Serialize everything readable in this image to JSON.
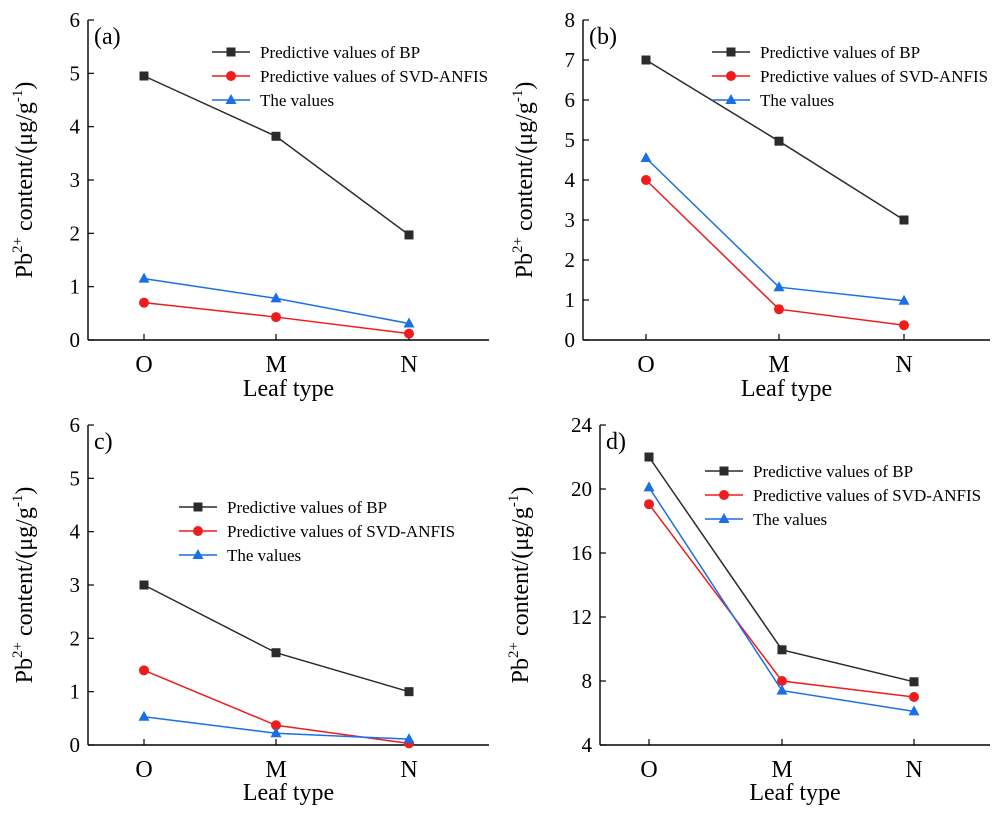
{
  "colors": {
    "bp": "#2b2b2b",
    "svd": "#ee1c1c",
    "actual": "#1a6fe6",
    "axis": "#000000"
  },
  "chart_data": [
    {
      "type": "line",
      "panel_label": "(a)",
      "xlabel": "Leaf type",
      "ylabel_main": "Pb",
      "ylabel_sup": "2+",
      "ylabel_rest": " content/(μg/g",
      "ylabel_unit_sup": "-1",
      "ylabel_close": ")",
      "categories": [
        "O",
        "M",
        "N"
      ],
      "ylim": [
        0,
        6
      ],
      "yticks": [
        "0",
        "1",
        "2",
        "3",
        "4",
        "5",
        "6"
      ],
      "legend_position": "top-right",
      "series": [
        {
          "name": "Predictive values of BP",
          "marker": "square",
          "values": [
            4.95,
            3.82,
            1.97
          ]
        },
        {
          "name": "Predictive values of SVD-ANFIS",
          "marker": "circle",
          "values": [
            0.7,
            0.43,
            0.12
          ]
        },
        {
          "name": "The values",
          "marker": "triangle",
          "values": [
            1.15,
            0.78,
            0.31
          ]
        }
      ]
    },
    {
      "type": "line",
      "panel_label": "(b)",
      "xlabel": "Leaf type",
      "ylabel_main": "Pb",
      "ylabel_sup": "2+",
      "ylabel_rest": " content/(μg/g",
      "ylabel_unit_sup": "-1",
      "ylabel_close": ")",
      "categories": [
        "O",
        "M",
        "N"
      ],
      "ylim": [
        0,
        8
      ],
      "yticks": [
        "0",
        "1",
        "2",
        "3",
        "4",
        "5",
        "6",
        "7",
        "8"
      ],
      "legend_position": "top-right",
      "series": [
        {
          "name": "Predictive values of BP",
          "marker": "square",
          "values": [
            7.0,
            4.97,
            3.0
          ]
        },
        {
          "name": "Predictive values of SVD-ANFIS",
          "marker": "circle",
          "values": [
            4.0,
            0.77,
            0.37
          ]
        },
        {
          "name": "The values",
          "marker": "triangle",
          "values": [
            4.55,
            1.32,
            0.98
          ]
        }
      ]
    },
    {
      "type": "line",
      "panel_label": "c)",
      "xlabel": "Leaf type",
      "ylabel_main": "Pb",
      "ylabel_sup": "2+",
      "ylabel_rest": " content/(μg/g",
      "ylabel_unit_sup": "-1",
      "ylabel_close": ")",
      "categories": [
        "O",
        "M",
        "N"
      ],
      "ylim": [
        0,
        6
      ],
      "yticks": [
        "0",
        "1",
        "2",
        "3",
        "4",
        "5",
        "6"
      ],
      "legend_position": "center-right",
      "series": [
        {
          "name": "Predictive values of BP",
          "marker": "square",
          "values": [
            3.0,
            1.73,
            1.0
          ]
        },
        {
          "name": "Predictive values of SVD-ANFIS",
          "marker": "circle",
          "values": [
            1.4,
            0.37,
            0.03
          ]
        },
        {
          "name": "The values",
          "marker": "triangle",
          "values": [
            0.53,
            0.22,
            0.11
          ]
        }
      ]
    },
    {
      "type": "line",
      "panel_label": "d)",
      "xlabel": "Leaf type",
      "ylabel_main": "Pb",
      "ylabel_sup": "2+",
      "ylabel_rest": " content/(μg/g",
      "ylabel_unit_sup": "-1",
      "ylabel_close": ")",
      "categories": [
        "O",
        "M",
        "N"
      ],
      "ylim": [
        4,
        24
      ],
      "yticks": [
        "4",
        "8",
        "12",
        "16",
        "20",
        "24"
      ],
      "legend_position": "top-right",
      "series": [
        {
          "name": "Predictive values of BP",
          "marker": "square",
          "values": [
            22.0,
            9.95,
            7.95
          ]
        },
        {
          "name": "Predictive values of SVD-ANFIS",
          "marker": "circle",
          "values": [
            19.05,
            8.0,
            7.0
          ]
        },
        {
          "name": "The values",
          "marker": "triangle",
          "values": [
            20.1,
            7.4,
            6.1
          ]
        }
      ]
    }
  ]
}
